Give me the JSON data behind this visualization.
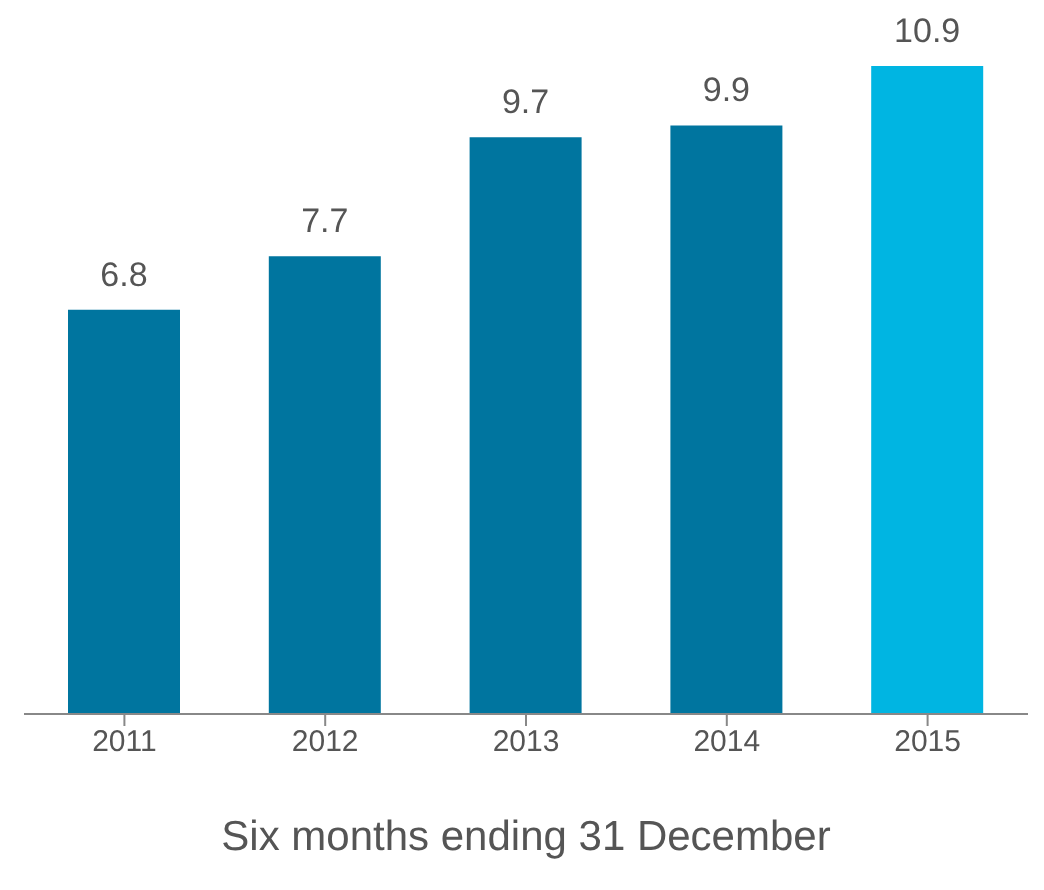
{
  "chart_data": {
    "type": "bar",
    "xlabel": "Six months ending 31 December",
    "categories": [
      "2011",
      "2012",
      "2013",
      "2014",
      "2015"
    ],
    "values": [
      6.8,
      7.7,
      9.7,
      9.9,
      10.9
    ],
    "colors": [
      "#00759f",
      "#00759f",
      "#00759f",
      "#00759f",
      "#00b5e2"
    ],
    "data_labels": true,
    "grid": false,
    "legend": false
  }
}
